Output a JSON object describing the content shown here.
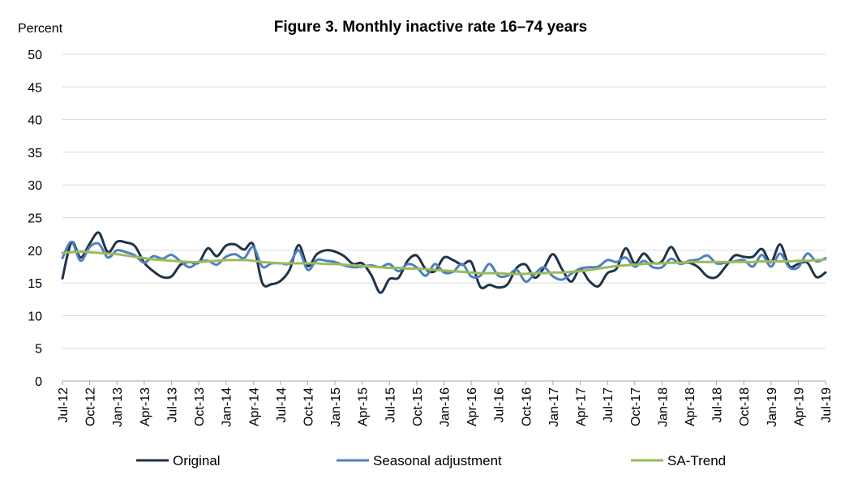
{
  "chart_data": {
    "type": "line",
    "title": "Figure 3. Monthly inactive rate 16–74 years",
    "ylabel": "Percent",
    "xlabel": "",
    "ylim": [
      0,
      50
    ],
    "yticks": [
      0,
      5,
      10,
      15,
      20,
      25,
      30,
      35,
      40,
      45,
      50
    ],
    "grid": true,
    "legend_position": "bottom",
    "x_tick_labels": [
      "Jul-12",
      "Oct-12",
      "Jan-13",
      "Apr-13",
      "Jul-13",
      "Oct-13",
      "Jan-14",
      "Apr-14",
      "Jul-14",
      "Oct-14",
      "Jan-15",
      "Apr-15",
      "Jul-15",
      "Oct-15",
      "Jan-16",
      "Apr-16",
      "Jul-16",
      "Oct-16",
      "Jan-17",
      "Apr-17",
      "Jul-17",
      "Oct-17",
      "Jan-18",
      "Apr-18",
      "Jul-18",
      "Oct-18",
      "Jan-19",
      "Apr-19",
      "Jul-19"
    ],
    "x": [
      "Jul-12",
      "Aug-12",
      "Sep-12",
      "Oct-12",
      "Nov-12",
      "Dec-12",
      "Jan-13",
      "Feb-13",
      "Mar-13",
      "Apr-13",
      "May-13",
      "Jun-13",
      "Jul-13",
      "Aug-13",
      "Sep-13",
      "Oct-13",
      "Nov-13",
      "Dec-13",
      "Jan-14",
      "Feb-14",
      "Mar-14",
      "Apr-14",
      "May-14",
      "Jun-14",
      "Jul-14",
      "Aug-14",
      "Sep-14",
      "Oct-14",
      "Nov-14",
      "Dec-14",
      "Jan-15",
      "Feb-15",
      "Mar-15",
      "Apr-15",
      "May-15",
      "Jun-15",
      "Jul-15",
      "Aug-15",
      "Sep-15",
      "Oct-15",
      "Nov-15",
      "Dec-15",
      "Jan-16",
      "Feb-16",
      "Mar-16",
      "Apr-16",
      "May-16",
      "Jun-16",
      "Jul-16",
      "Aug-16",
      "Sep-16",
      "Oct-16",
      "Nov-16",
      "Dec-16",
      "Jan-17",
      "Feb-17",
      "Mar-17",
      "Apr-17",
      "May-17",
      "Jun-17",
      "Jul-17",
      "Aug-17",
      "Sep-17",
      "Oct-17",
      "Nov-17",
      "Dec-17",
      "Jan-18",
      "Feb-18",
      "Mar-18",
      "Apr-18",
      "May-18",
      "Jun-18",
      "Jul-18",
      "Aug-18",
      "Sep-18",
      "Oct-18",
      "Nov-18",
      "Dec-18",
      "Jan-19",
      "Feb-19",
      "Mar-19",
      "Apr-19",
      "May-19",
      "Jun-19",
      "Jul-19"
    ],
    "series": [
      {
        "name": "Original",
        "color": "#1f3349",
        "values": [
          15.7,
          21.2,
          18.9,
          21.0,
          22.7,
          19.7,
          21.3,
          21.2,
          20.6,
          18.1,
          16.8,
          15.9,
          16.0,
          17.8,
          18.2,
          18.1,
          20.3,
          19.1,
          20.7,
          20.9,
          20.1,
          20.9,
          15.0,
          14.8,
          15.3,
          17.0,
          20.8,
          17.6,
          19.4,
          20.0,
          19.8,
          19.1,
          17.9,
          18.0,
          16.2,
          13.5,
          15.6,
          15.8,
          18.4,
          19.2,
          17.1,
          16.8,
          18.9,
          18.5,
          17.8,
          18.2,
          14.4,
          14.7,
          14.3,
          14.8,
          17.3,
          17.8,
          15.8,
          17.3,
          19.4,
          17.1,
          15.2,
          17.1,
          15.3,
          14.5,
          16.5,
          17.2,
          20.3,
          18.0,
          19.5,
          18.1,
          18.3,
          20.5,
          18.3,
          18.1,
          17.4,
          16.0,
          15.9,
          17.5,
          19.2,
          19.0,
          19.0,
          20.2,
          18.2,
          20.9,
          17.6,
          17.9,
          18.1,
          15.9,
          16.6
        ]
      },
      {
        "name": "Seasonal adjustment",
        "color": "#4f81bd",
        "values": [
          18.8,
          21.3,
          18.4,
          20.5,
          21.0,
          18.9,
          20.0,
          19.7,
          19.2,
          18.1,
          19.1,
          18.7,
          19.3,
          18.3,
          17.4,
          18.2,
          18.4,
          17.8,
          19.0,
          19.4,
          18.8,
          20.5,
          17.5,
          18.0,
          18.0,
          18.0,
          20.0,
          17.0,
          18.5,
          18.4,
          18.2,
          17.7,
          17.4,
          17.5,
          17.7,
          17.4,
          17.9,
          16.8,
          17.9,
          17.4,
          16.1,
          17.9,
          16.6,
          16.7,
          17.9,
          16.0,
          16.1,
          17.9,
          16.1,
          16.1,
          17.0,
          15.2,
          16.4,
          17.4,
          16.0,
          15.5,
          16.4,
          17.2,
          17.4,
          17.5,
          18.5,
          18.2,
          18.9,
          17.5,
          18.4,
          17.4,
          17.4,
          18.7,
          17.9,
          18.4,
          18.6,
          19.2,
          18.0,
          18.1,
          18.3,
          18.5,
          17.5,
          19.3,
          17.5,
          19.5,
          17.4,
          17.4,
          19.5,
          18.3,
          18.8
        ]
      },
      {
        "name": "SA-Trend",
        "color": "#9bbb59",
        "values": [
          19.6,
          19.7,
          19.8,
          19.7,
          19.6,
          19.5,
          19.4,
          19.2,
          19.0,
          18.8,
          18.6,
          18.5,
          18.4,
          18.3,
          18.2,
          18.2,
          18.3,
          18.4,
          18.5,
          18.5,
          18.5,
          18.4,
          18.2,
          18.1,
          18.0,
          18.0,
          18.0,
          18.0,
          18.0,
          17.9,
          17.9,
          17.8,
          17.7,
          17.6,
          17.5,
          17.4,
          17.3,
          17.3,
          17.2,
          17.2,
          17.1,
          17.0,
          16.9,
          16.8,
          16.7,
          16.6,
          16.5,
          16.5,
          16.5,
          16.4,
          16.4,
          16.4,
          16.5,
          16.5,
          16.6,
          16.6,
          16.7,
          16.8,
          17.0,
          17.2,
          17.4,
          17.6,
          17.7,
          17.8,
          17.9,
          18.0,
          18.0,
          18.1,
          18.1,
          18.2,
          18.2,
          18.2,
          18.2,
          18.2,
          18.2,
          18.2,
          18.2,
          18.3,
          18.3,
          18.3,
          18.3,
          18.4,
          18.4,
          18.5,
          18.6
        ]
      }
    ]
  }
}
